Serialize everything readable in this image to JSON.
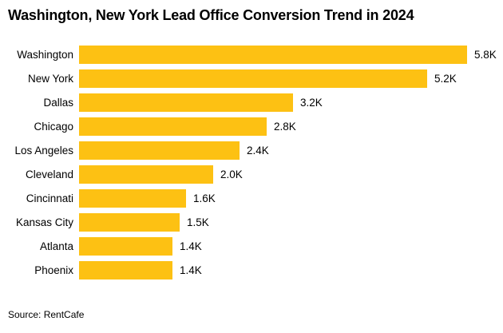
{
  "title": "Washington, New York Lead Office Conversion Trend in 2024",
  "source": "Source: RentCafe",
  "colors": {
    "bar": "#FDC113",
    "text": "#000000",
    "background": "#FFFFFF"
  },
  "chart_data": {
    "type": "bar",
    "orientation": "horizontal",
    "title": "Washington, New York Lead Office Conversion Trend in 2024",
    "categories": [
      "Washington",
      "New York",
      "Dallas",
      "Chicago",
      "Los Angeles",
      "Cleveland",
      "Cincinnati",
      "Kansas City",
      "Atlanta",
      "Phoenix"
    ],
    "values": [
      5800,
      5200,
      3200,
      2800,
      2400,
      2000,
      1600,
      1500,
      1400,
      1400
    ],
    "value_labels": [
      "5.8K",
      "5.2K",
      "3.2K",
      "2.8K",
      "2.4K",
      "2.0K",
      "1.6K",
      "1.5K",
      "1.4K",
      "1.4K"
    ],
    "xlim": [
      0,
      5800
    ],
    "xlabel": "",
    "ylabel": "",
    "grid": false,
    "legend": false,
    "bar_color": "#FDC113",
    "source": "Source: RentCafe"
  }
}
